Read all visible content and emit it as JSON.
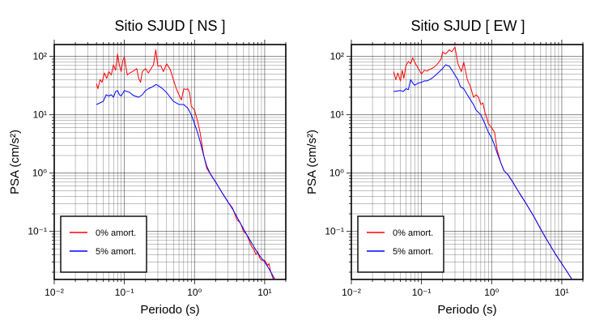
{
  "chart_data": [
    {
      "type": "line",
      "title": "Sitio SJUD [ NS ]",
      "xlabel": "Periodo (s)",
      "ylabel": "PSA (cm/s²)",
      "xscale": "log",
      "yscale": "log",
      "xlim": [
        0.01,
        20
      ],
      "ylim": [
        0.015,
        160
      ],
      "xticks": [
        "10⁻²",
        "10⁻¹",
        "10⁰",
        "10¹"
      ],
      "yticks": [
        "10⁻¹",
        "10⁰",
        "10¹",
        "10²"
      ],
      "grid": true,
      "legend_position": "bottom-left",
      "series": [
        {
          "name": "0% amort.",
          "color": "#ff0000",
          "points": [
            [
              0.04,
              34
            ],
            [
              0.042,
              28
            ],
            [
              0.045,
              40
            ],
            [
              0.048,
              36
            ],
            [
              0.052,
              52
            ],
            [
              0.056,
              42
            ],
            [
              0.06,
              55
            ],
            [
              0.065,
              48
            ],
            [
              0.07,
              72
            ],
            [
              0.075,
              58
            ],
            [
              0.08,
              110
            ],
            [
              0.085,
              70
            ],
            [
              0.09,
              55
            ],
            [
              0.095,
              85
            ],
            [
              0.1,
              98
            ],
            [
              0.11,
              48
            ],
            [
              0.12,
              52
            ],
            [
              0.13,
              55
            ],
            [
              0.14,
              58
            ],
            [
              0.15,
              62
            ],
            [
              0.16,
              42
            ],
            [
              0.17,
              36
            ],
            [
              0.18,
              55
            ],
            [
              0.2,
              62
            ],
            [
              0.22,
              52
            ],
            [
              0.24,
              62
            ],
            [
              0.26,
              72
            ],
            [
              0.28,
              130
            ],
            [
              0.3,
              68
            ],
            [
              0.33,
              70
            ],
            [
              0.36,
              55
            ],
            [
              0.4,
              75
            ],
            [
              0.45,
              60
            ],
            [
              0.5,
              40
            ],
            [
              0.55,
              28
            ],
            [
              0.6,
              22
            ],
            [
              0.65,
              18
            ],
            [
              0.7,
              28
            ],
            [
              0.75,
              27
            ],
            [
              0.8,
              28
            ],
            [
              0.85,
              24
            ],
            [
              0.9,
              14
            ],
            [
              1.0,
              12
            ],
            [
              1.1,
              8
            ],
            [
              1.2,
              5
            ],
            [
              1.35,
              2
            ],
            [
              1.5,
              1.2
            ],
            [
              1.7,
              0.95
            ],
            [
              2.0,
              0.7
            ],
            [
              2.5,
              0.45
            ],
            [
              3.0,
              0.32
            ],
            [
              3.5,
              0.25
            ],
            [
              4.0,
              0.16
            ],
            [
              4.5,
              0.14
            ],
            [
              5.0,
              0.1
            ],
            [
              5.5,
              0.09
            ],
            [
              6.0,
              0.07
            ],
            [
              6.5,
              0.055
            ],
            [
              7.0,
              0.05
            ],
            [
              7.5,
              0.04
            ],
            [
              8.0,
              0.045
            ],
            [
              8.5,
              0.035
            ],
            [
              9.0,
              0.032
            ],
            [
              10.0,
              0.032
            ],
            [
              11.0,
              0.026
            ],
            [
              11.5,
              0.028
            ],
            [
              12.0,
              0.022
            ],
            [
              13.0,
              0.016
            ],
            [
              14.0,
              0.015
            ]
          ]
        },
        {
          "name": "5% amort.",
          "color": "#0000ff",
          "points": [
            [
              0.04,
              15
            ],
            [
              0.045,
              16
            ],
            [
              0.05,
              17
            ],
            [
              0.055,
              22
            ],
            [
              0.06,
              21
            ],
            [
              0.065,
              22
            ],
            [
              0.07,
              20
            ],
            [
              0.075,
              25
            ],
            [
              0.08,
              26
            ],
            [
              0.085,
              22
            ],
            [
              0.09,
              21
            ],
            [
              0.1,
              26
            ],
            [
              0.11,
              25
            ],
            [
              0.12,
              24
            ],
            [
              0.13,
              22
            ],
            [
              0.14,
              21
            ],
            [
              0.16,
              20
            ],
            [
              0.18,
              22
            ],
            [
              0.2,
              26
            ],
            [
              0.22,
              28
            ],
            [
              0.25,
              30
            ],
            [
              0.28,
              33
            ],
            [
              0.3,
              32
            ],
            [
              0.35,
              28
            ],
            [
              0.4,
              24
            ],
            [
              0.45,
              20
            ],
            [
              0.5,
              17
            ],
            [
              0.6,
              15
            ],
            [
              0.7,
              15
            ],
            [
              0.8,
              13
            ],
            [
              0.9,
              10
            ],
            [
              1.0,
              7
            ],
            [
              1.1,
              5
            ],
            [
              1.2,
              3.5
            ],
            [
              1.35,
              2
            ],
            [
              1.5,
              1.3
            ],
            [
              1.7,
              0.95
            ],
            [
              2.0,
              0.7
            ],
            [
              2.5,
              0.45
            ],
            [
              3.0,
              0.32
            ],
            [
              3.5,
              0.24
            ],
            [
              4.0,
              0.18
            ],
            [
              5.0,
              0.11
            ],
            [
              6.0,
              0.075
            ],
            [
              7.0,
              0.055
            ],
            [
              8.0,
              0.042
            ],
            [
              9.0,
              0.035
            ],
            [
              10.0,
              0.03
            ],
            [
              12.0,
              0.021
            ],
            [
              14.0,
              0.015
            ]
          ]
        }
      ]
    },
    {
      "type": "line",
      "title": "Sitio SJUD [ EW ]",
      "xlabel": "Periodo (s)",
      "ylabel": "PSA (cm/s²)",
      "xscale": "log",
      "yscale": "log",
      "xlim": [
        0.01,
        20
      ],
      "ylim": [
        0.015,
        160
      ],
      "xticks": [
        "10⁻²",
        "10⁻¹",
        "10⁰",
        "10¹"
      ],
      "yticks": [
        "10⁻¹",
        "10⁰",
        "10¹",
        "10²"
      ],
      "grid": true,
      "legend_position": "bottom-left",
      "series": [
        {
          "name": "0% amort.",
          "color": "#ff0000",
          "points": [
            [
              0.04,
              55
            ],
            [
              0.043,
              40
            ],
            [
              0.046,
              52
            ],
            [
              0.05,
              38
            ],
            [
              0.053,
              58
            ],
            [
              0.056,
              42
            ],
            [
              0.06,
              70
            ],
            [
              0.065,
              82
            ],
            [
              0.07,
              75
            ],
            [
              0.075,
              95
            ],
            [
              0.08,
              80
            ],
            [
              0.09,
              62
            ],
            [
              0.1,
              50
            ],
            [
              0.11,
              58
            ],
            [
              0.12,
              56
            ],
            [
              0.13,
              60
            ],
            [
              0.14,
              62
            ],
            [
              0.15,
              65
            ],
            [
              0.17,
              75
            ],
            [
              0.19,
              90
            ],
            [
              0.2,
              120
            ],
            [
              0.22,
              110
            ],
            [
              0.25,
              130
            ],
            [
              0.27,
              120
            ],
            [
              0.3,
              145
            ],
            [
              0.33,
              75
            ],
            [
              0.37,
              55
            ],
            [
              0.4,
              80
            ],
            [
              0.45,
              40
            ],
            [
              0.5,
              30
            ],
            [
              0.55,
              20
            ],
            [
              0.6,
              22
            ],
            [
              0.65,
              20
            ],
            [
              0.7,
              15
            ],
            [
              0.75,
              16
            ],
            [
              0.8,
              11
            ],
            [
              0.85,
              9
            ],
            [
              0.9,
              7
            ],
            [
              1.0,
              6
            ],
            [
              1.1,
              5
            ],
            [
              1.2,
              2.5
            ],
            [
              1.35,
              1.5
            ],
            [
              1.5,
              1.1
            ],
            [
              1.7,
              0.95
            ],
            [
              2.0,
              0.7
            ],
            [
              2.5,
              0.45
            ],
            [
              3.0,
              0.32
            ],
            [
              4.0,
              0.18
            ],
            [
              5.0,
              0.11
            ],
            [
              6.0,
              0.075
            ],
            [
              8.0,
              0.042
            ],
            [
              10.0,
              0.028
            ],
            [
              12.0,
              0.02
            ],
            [
              14.0,
              0.015
            ]
          ]
        },
        {
          "name": "5% amort.",
          "color": "#0000ff",
          "points": [
            [
              0.04,
              25
            ],
            [
              0.05,
              26
            ],
            [
              0.055,
              25
            ],
            [
              0.06,
              28
            ],
            [
              0.065,
              27
            ],
            [
              0.07,
              40
            ],
            [
              0.075,
              35
            ],
            [
              0.08,
              32
            ],
            [
              0.09,
              35
            ],
            [
              0.1,
              36
            ],
            [
              0.11,
              38
            ],
            [
              0.12,
              38
            ],
            [
              0.14,
              42
            ],
            [
              0.16,
              48
            ],
            [
              0.18,
              55
            ],
            [
              0.2,
              62
            ],
            [
              0.22,
              72
            ],
            [
              0.25,
              68
            ],
            [
              0.28,
              55
            ],
            [
              0.3,
              48
            ],
            [
              0.33,
              40
            ],
            [
              0.36,
              30
            ],
            [
              0.4,
              28
            ],
            [
              0.45,
              22
            ],
            [
              0.5,
              18
            ],
            [
              0.55,
              15
            ],
            [
              0.6,
              12
            ],
            [
              0.7,
              10
            ],
            [
              0.8,
              7
            ],
            [
              0.9,
              5
            ],
            [
              1.0,
              4
            ],
            [
              1.1,
              3
            ],
            [
              1.2,
              2.2
            ],
            [
              1.35,
              1.5
            ],
            [
              1.5,
              1.1
            ],
            [
              1.7,
              0.95
            ],
            [
              2.0,
              0.7
            ],
            [
              2.5,
              0.45
            ],
            [
              3.0,
              0.32
            ],
            [
              4.0,
              0.18
            ],
            [
              5.0,
              0.11
            ],
            [
              6.0,
              0.075
            ],
            [
              8.0,
              0.042
            ],
            [
              10.0,
              0.028
            ],
            [
              12.0,
              0.02
            ],
            [
              14.0,
              0.015
            ]
          ]
        }
      ]
    }
  ]
}
